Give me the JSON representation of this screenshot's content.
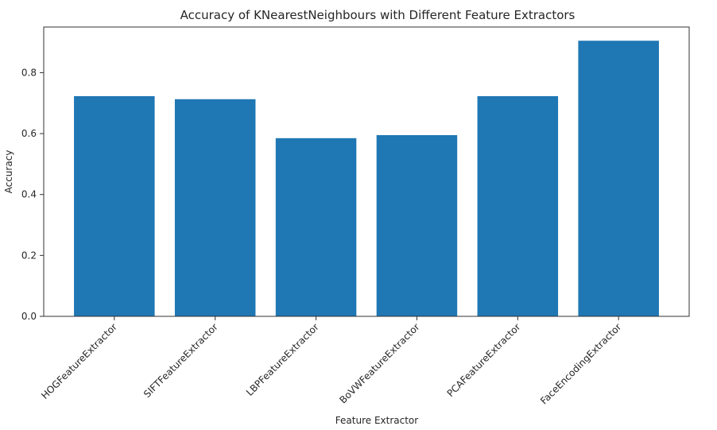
{
  "chart_data": {
    "type": "bar",
    "title": "Accuracy of KNearestNeighbours with Different Feature Extractors",
    "xlabel": "Feature Extractor",
    "ylabel": "Accuracy",
    "categories": [
      "HOGFeatureExtractor",
      "SIFTFeatureExtractor",
      "LBPFeatureExtractor",
      "BoVWFeatureExtractor",
      "PCAFeatureExtractor",
      "FaceEncodingExtractor"
    ],
    "values": [
      0.723,
      0.713,
      0.585,
      0.595,
      0.723,
      0.905
    ],
    "ylim": [
      0,
      0.95
    ],
    "yticks": [
      0.0,
      0.2,
      0.4,
      0.6,
      0.8
    ],
    "ytick_labels": [
      "0.0",
      "0.2",
      "0.4",
      "0.6",
      "0.8"
    ],
    "bar_color": "#1f77b4",
    "grid": false,
    "legend": "none"
  }
}
